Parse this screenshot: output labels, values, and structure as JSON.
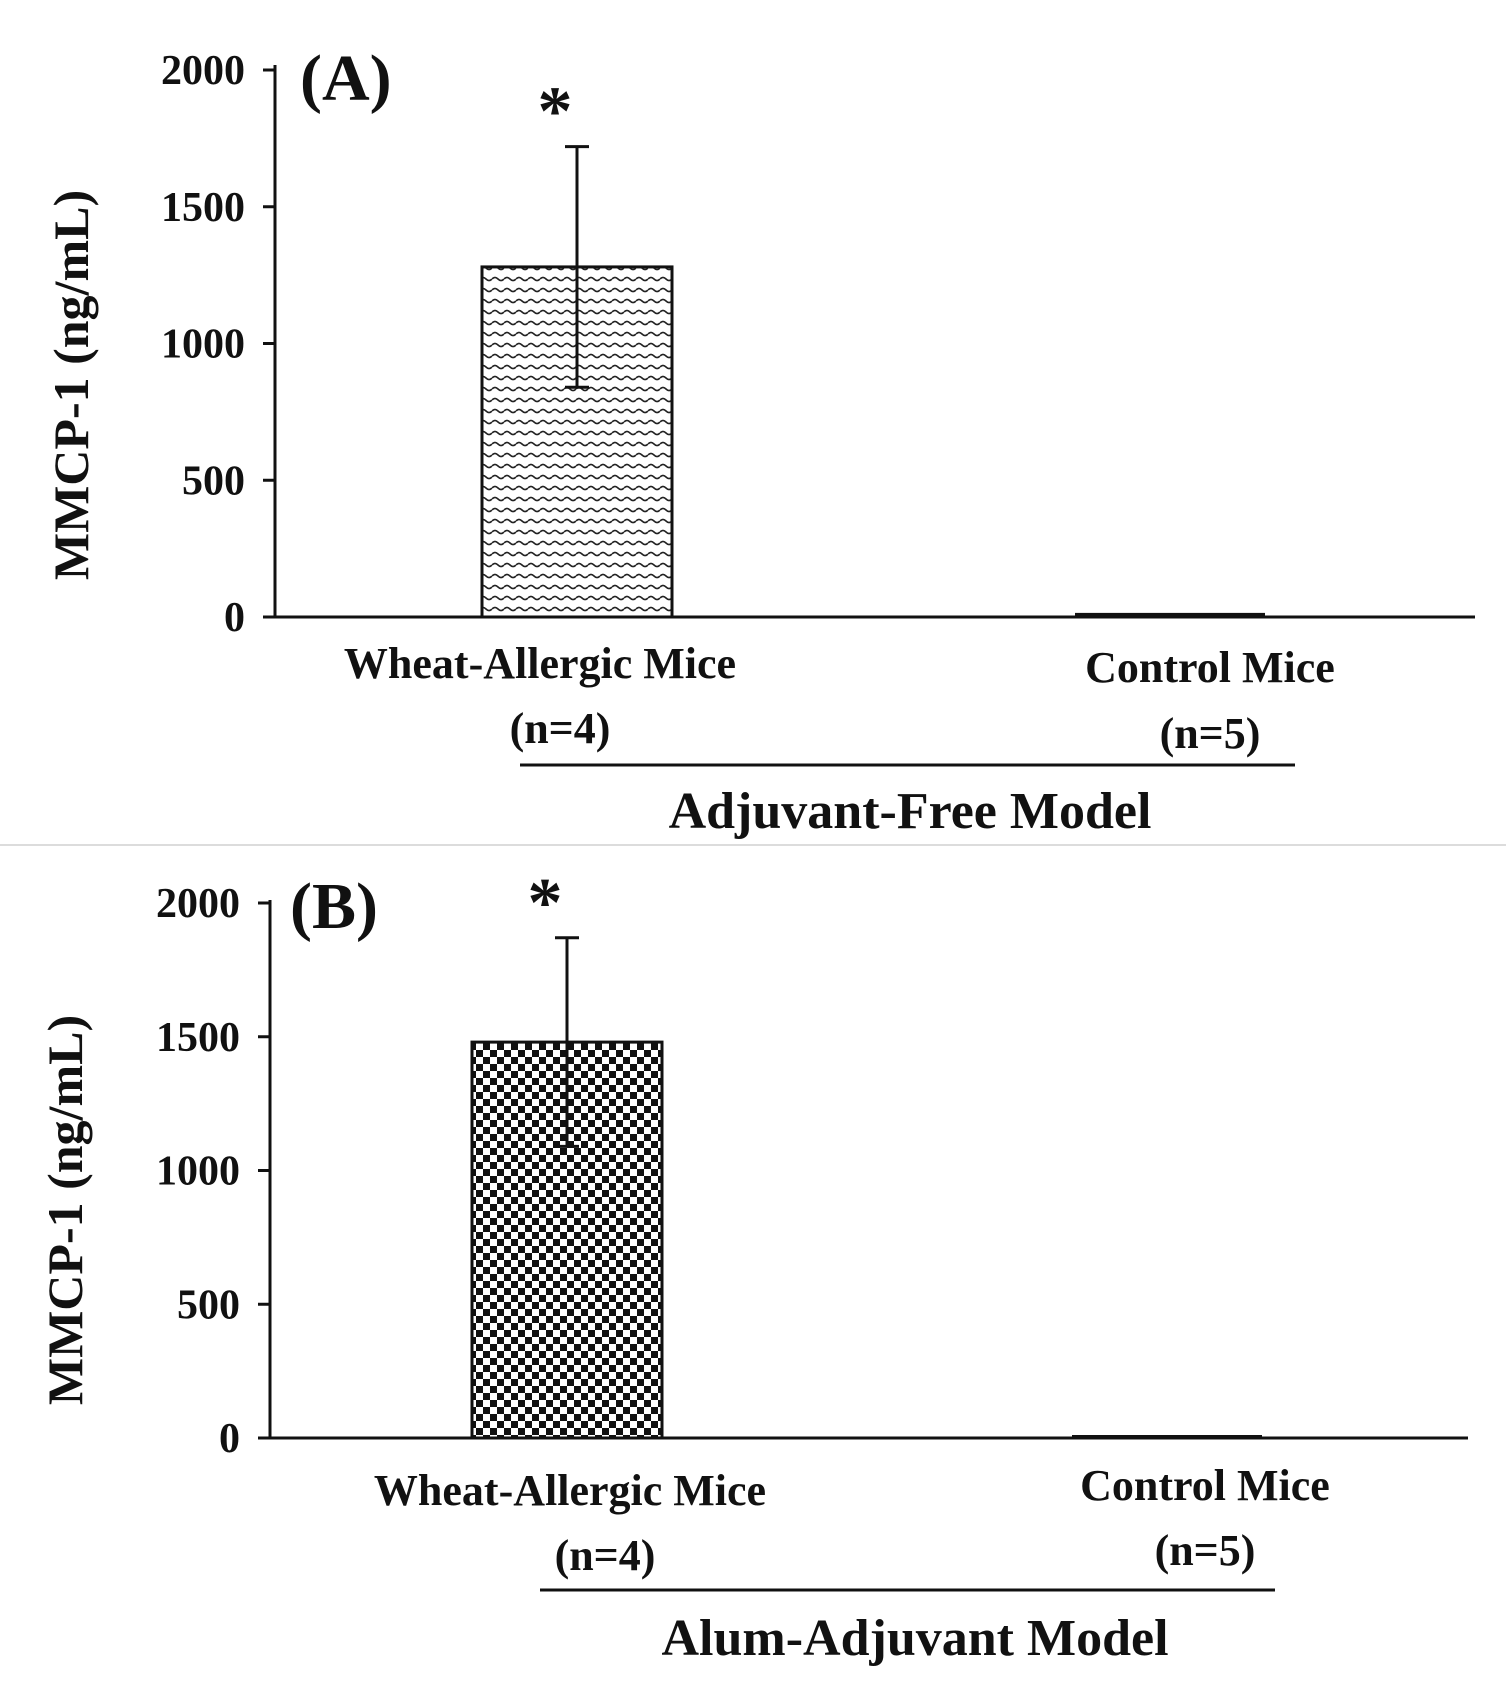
{
  "chart_data": [
    {
      "type": "bar",
      "panel": "(A)",
      "title": "",
      "ylabel": "MMCP-1 (ng/mL)",
      "xlabel": "",
      "group_label": "Adjuvant-Free Model",
      "ylim": [
        0,
        2000
      ],
      "yticks": [
        "0",
        "500",
        "1000",
        "1500",
        "2000"
      ],
      "categories": [
        {
          "name": "Wheat-Allergic Mice",
          "n": "(n=4)"
        },
        {
          "name": "Control  Mice",
          "n": "(n=5)"
        }
      ],
      "values": [
        1280,
        15
      ],
      "errors": [
        440,
        0
      ],
      "significance": [
        "*",
        ""
      ],
      "patterns": [
        "wave",
        "none"
      ]
    },
    {
      "type": "bar",
      "panel": "(B)",
      "title": "",
      "ylabel": "MMCP-1 (ng/mL)",
      "xlabel": "",
      "group_label": "Alum-Adjuvant Model",
      "ylim": [
        0,
        2000
      ],
      "yticks": [
        "0",
        "500",
        "1000",
        "1500",
        "2000"
      ],
      "categories": [
        {
          "name": "Wheat-Allergic Mice",
          "n": "(n=4)"
        },
        {
          "name": "Control  Mice",
          "n": "(n=5)"
        }
      ],
      "values": [
        1480,
        10
      ],
      "errors": [
        390,
        0
      ],
      "significance": [
        "*",
        ""
      ],
      "patterns": [
        "checker",
        "none"
      ]
    }
  ]
}
